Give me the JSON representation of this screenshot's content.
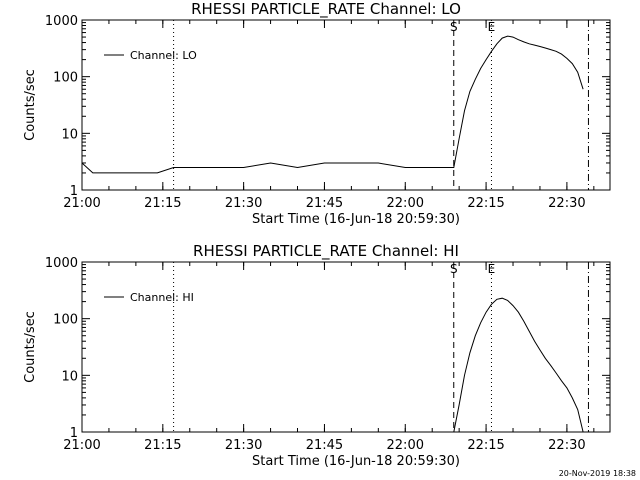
{
  "footer_timestamp": "20-Nov-2019 18:38",
  "chart_data": [
    {
      "type": "line",
      "title": "RHESSI PARTICLE_RATE Channel: LO",
      "xlabel": "Start Time (16-Jun-18 20:59:30)",
      "ylabel": "Counts/sec",
      "yscale": "log",
      "xlim": [
        "21:00",
        "22:38"
      ],
      "ylim": [
        1,
        1000
      ],
      "x_ticks": [
        "21:00",
        "21:15",
        "21:30",
        "21:45",
        "22:00",
        "22:15",
        "22:30"
      ],
      "y_ticks": [
        "1",
        "10",
        "100",
        "1000"
      ],
      "legend": {
        "placement": "top-left",
        "entries": [
          "Channel: LO"
        ]
      },
      "markers": [
        {
          "time": "21:17",
          "style": "dotted",
          "label": ""
        },
        {
          "time": "22:09",
          "style": "dashed",
          "label": "S"
        },
        {
          "time": "22:16",
          "style": "dotted",
          "label": "E"
        },
        {
          "time": "22:34",
          "style": "dashdot",
          "label": ""
        }
      ],
      "series": [
        {
          "name": "Channel: LO",
          "x": [
            "21:00",
            "21:02",
            "21:05",
            "21:08",
            "21:11",
            "21:14",
            "21:17",
            "21:20",
            "21:25",
            "21:30",
            "21:35",
            "21:40",
            "21:45",
            "21:50",
            "21:55",
            "22:00",
            "22:05",
            "22:09",
            "22:10",
            "22:11",
            "22:12",
            "22:13",
            "22:14",
            "22:15",
            "22:16",
            "22:17",
            "22:18",
            "22:19",
            "22:20",
            "22:21",
            "22:22",
            "22:23",
            "22:24",
            "22:25",
            "22:26",
            "22:27",
            "22:28",
            "22:29",
            "22:30",
            "22:31",
            "22:32",
            "22:33"
          ],
          "values": [
            3,
            2,
            2,
            2,
            2,
            2,
            2.5,
            2.5,
            2.5,
            2.5,
            3,
            2.5,
            3,
            3,
            3,
            2.5,
            2.5,
            2.5,
            8,
            25,
            55,
            90,
            140,
            200,
            280,
            380,
            480,
            520,
            500,
            450,
            410,
            380,
            360,
            340,
            320,
            300,
            280,
            250,
            210,
            170,
            120,
            60
          ]
        }
      ]
    },
    {
      "type": "line",
      "title": "RHESSI PARTICLE_RATE Channel: HI",
      "xlabel": "Start Time (16-Jun-18 20:59:30)",
      "ylabel": "Counts/sec",
      "yscale": "log",
      "xlim": [
        "21:00",
        "22:38"
      ],
      "ylim": [
        1,
        1000
      ],
      "x_ticks": [
        "21:00",
        "21:15",
        "21:30",
        "21:45",
        "22:00",
        "22:15",
        "22:30"
      ],
      "y_ticks": [
        "1",
        "10",
        "100",
        "1000"
      ],
      "legend": {
        "placement": "top-left",
        "entries": [
          "Channel: HI"
        ]
      },
      "markers": [
        {
          "time": "21:17",
          "style": "dotted",
          "label": ""
        },
        {
          "time": "22:09",
          "style": "dashed",
          "label": "S"
        },
        {
          "time": "22:16",
          "style": "dotted",
          "label": "E"
        },
        {
          "time": "22:34",
          "style": "dashdot",
          "label": ""
        }
      ],
      "series": [
        {
          "name": "Channel: HI",
          "x": [
            "22:09",
            "22:10",
            "22:11",
            "22:12",
            "22:13",
            "22:14",
            "22:15",
            "22:16",
            "22:17",
            "22:18",
            "22:19",
            "22:20",
            "22:21",
            "22:22",
            "22:23",
            "22:24",
            "22:25",
            "22:26",
            "22:27",
            "22:28",
            "22:29",
            "22:30",
            "22:31",
            "22:32",
            "22:33"
          ],
          "values": [
            1,
            3,
            10,
            25,
            50,
            85,
            130,
            180,
            220,
            230,
            210,
            170,
            130,
            90,
            60,
            40,
            28,
            20,
            15,
            11,
            8,
            6,
            4,
            2.5,
            1
          ]
        }
      ]
    }
  ]
}
